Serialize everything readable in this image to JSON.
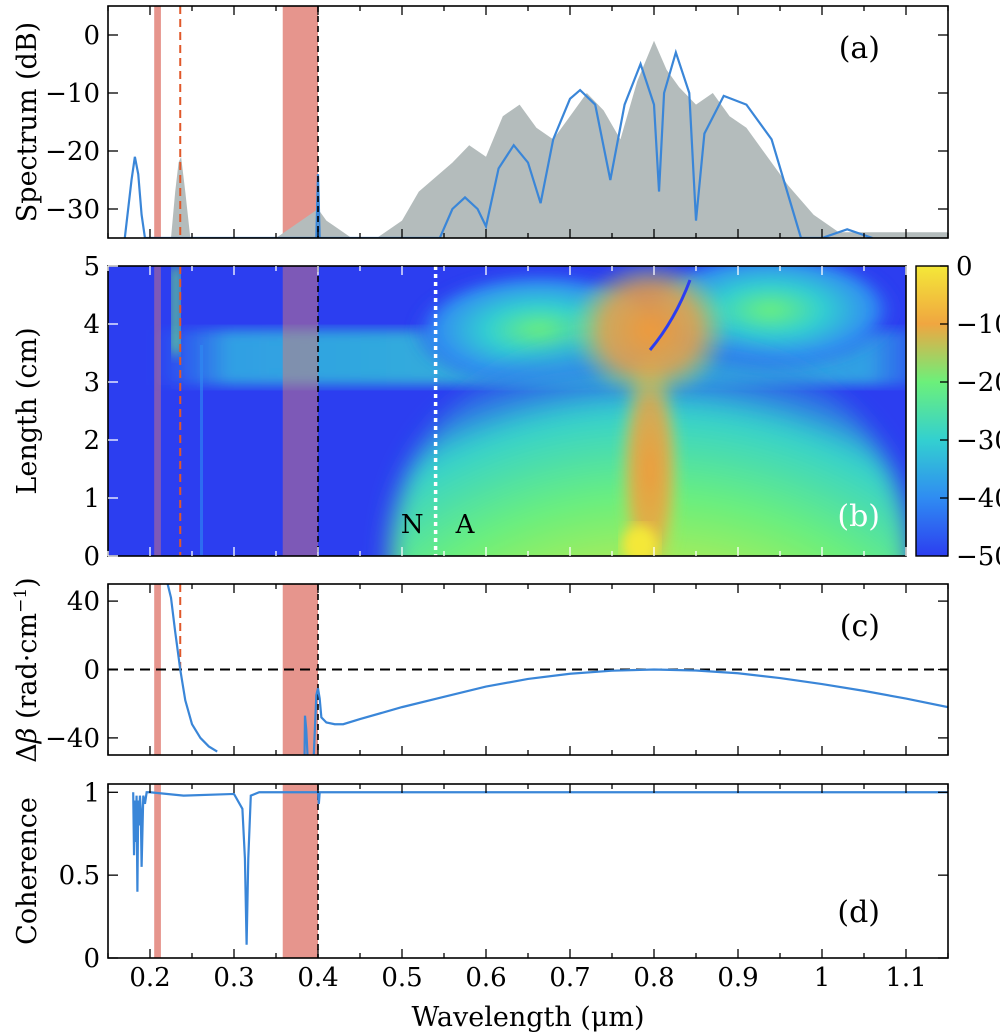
{
  "colors": {
    "curve": "#3a86d8",
    "spectrum_fill": "#b4bcbc",
    "band": "#e07a70",
    "dashed_vertical": "#e0582a",
    "zero_line": "#000000",
    "na_line": "#ffffff",
    "colormap": [
      "#2c3ef0",
      "#2f8cf2",
      "#33d0d0",
      "#6cf07a",
      "#c8e848",
      "#f0a640",
      "#f09a3a",
      "#f4e838"
    ]
  },
  "shared_x": {
    "label": "Wavelength (μm)",
    "range": [
      0.15,
      1.15
    ],
    "ticks": [
      0.2,
      0.3,
      0.4,
      0.5,
      0.6,
      0.7,
      0.8,
      0.9,
      1,
      1.1
    ],
    "tick_labels": [
      "0.2",
      "0.3",
      "0.4",
      "0.5",
      "0.6",
      "0.7",
      "0.8",
      "0.9",
      "1",
      "1.1"
    ]
  },
  "shaded_bands": [
    [
      0.205,
      0.213
    ],
    [
      0.358,
      0.4
    ]
  ],
  "dashed_wavelength": 0.236,
  "vertical_solid_wavelength": 0.4,
  "chart_data": [
    {
      "panel": "a",
      "type": "line",
      "label": "(a)",
      "ylabel": "Spectrum (dB)",
      "ylim": [
        -35,
        5
      ],
      "yticks": [
        0,
        -10,
        -20,
        -30
      ],
      "ytick_labels": [
        "0",
        "−10",
        "−20",
        "−30"
      ],
      "series": [
        {
          "kind": "simulated",
          "x": [
            0.225,
            0.23,
            0.234,
            0.237,
            0.242,
            0.248,
            0.31,
            0.33,
            0.35,
            0.38,
            0.4,
            0.41,
            0.42,
            0.44,
            0.47,
            0.5,
            0.52,
            0.56,
            0.58,
            0.6,
            0.62,
            0.64,
            0.66,
            0.68,
            0.7,
            0.72,
            0.74,
            0.76,
            0.78,
            0.8,
            0.815,
            0.83,
            0.85,
            0.87,
            0.89,
            0.91,
            0.93,
            0.96,
            0.99,
            1.02,
            1.15
          ],
          "y": [
            -35,
            -27,
            -22,
            -21,
            -27,
            -35,
            -35,
            -35,
            -35,
            -32,
            -30,
            -32,
            -33,
            -35,
            -35,
            -32,
            -27,
            -22,
            -19,
            -21,
            -14,
            -12,
            -16,
            -18,
            -14,
            -10,
            -13,
            -18,
            -8,
            -1,
            -6,
            -9,
            -12,
            -10,
            -14,
            -16,
            -20,
            -26,
            -31,
            -34,
            -34
          ]
        },
        {
          "kind": "model",
          "x": [
            0.17,
            0.178,
            0.182,
            0.186,
            0.19,
            0.194,
            0.398,
            0.4,
            0.402,
            0.545,
            0.56,
            0.575,
            0.59,
            0.6,
            0.615,
            0.633,
            0.65,
            0.665,
            0.68,
            0.7,
            0.712,
            0.73,
            0.748,
            0.765,
            0.784,
            0.8,
            0.806,
            0.812,
            0.826,
            0.842,
            0.85,
            0.86,
            0.883,
            0.91,
            0.94,
            0.975,
            1.0,
            1.03,
            1.06
          ],
          "y": [
            -35,
            -25,
            -21,
            -24,
            -31,
            -35,
            -35,
            -24,
            -35,
            -35,
            -30,
            -28,
            -30,
            -33,
            -23,
            -19,
            -22,
            -29,
            -18,
            -11,
            -9.5,
            -12,
            -25,
            -12,
            -5,
            -12,
            -27,
            -10,
            -3,
            -10,
            -32,
            -17,
            -10.5,
            -12,
            -18,
            -35,
            -35,
            -33.5,
            -35
          ]
        }
      ]
    },
    {
      "panel": "b",
      "type": "heatmap",
      "label": "(b)",
      "ylabel": "Length (cm)",
      "ylim": [
        0,
        5
      ],
      "yticks": [
        0,
        1,
        2,
        3,
        4,
        5
      ],
      "ytick_labels": [
        "0",
        "1",
        "2",
        "3",
        "4",
        "5"
      ],
      "colorbar": {
        "range": [
          -50,
          0
        ],
        "ticks": [
          0,
          -10,
          -20,
          -30,
          -40,
          -50
        ],
        "tick_labels": [
          "0",
          "−10",
          "−20",
          "−30",
          "−40",
          "−50"
        ]
      },
      "na_boundary": {
        "x": 0.54,
        "left_label": "N",
        "right_label": "A"
      }
    },
    {
      "panel": "c",
      "type": "line",
      "label": "(c)",
      "ylabel_prefix": "Δ",
      "ylabel_symbol": "β",
      "ylabel_unit": " (rad·cm",
      "ylabel_sup": "−1",
      "ylabel_close": ")",
      "ylim": [
        -50,
        50
      ],
      "yticks": [
        40,
        0,
        -40
      ],
      "ytick_labels": [
        "40",
        "0",
        "−40"
      ],
      "series": [
        {
          "kind": "left-branch",
          "x": [
            0.221,
            0.225,
            0.23,
            0.236,
            0.242,
            0.25,
            0.26,
            0.27,
            0.28
          ],
          "y": [
            50,
            42,
            22,
            0,
            -18,
            -32,
            -40,
            -45,
            -48
          ]
        },
        {
          "kind": "resonance-1",
          "x": [
            0.384,
            0.3845,
            0.386,
            0.3875
          ],
          "y": [
            -50,
            -27,
            -35,
            -50
          ]
        },
        {
          "kind": "main-branch",
          "x": [
            0.395,
            0.398,
            0.4,
            0.402,
            0.404,
            0.41,
            0.42,
            0.43,
            0.45,
            0.5,
            0.55,
            0.6,
            0.65,
            0.7,
            0.75,
            0.8,
            0.85,
            0.9,
            0.95,
            1.0,
            1.05,
            1.1,
            1.15
          ],
          "y": [
            -50,
            -15,
            -11,
            -17,
            -28,
            -31,
            -32,
            -32,
            -29,
            -22,
            -16,
            -10,
            -5.5,
            -2.5,
            -0.7,
            0,
            -0.6,
            -2.2,
            -5,
            -8.5,
            -12.5,
            -17,
            -22
          ]
        }
      ]
    },
    {
      "panel": "d",
      "type": "line",
      "label": "(d)",
      "ylabel": "Coherence",
      "ylim": [
        0,
        1.05
      ],
      "yticks": [
        0,
        0.5,
        1
      ],
      "ytick_labels": [
        "0",
        "0.5",
        "1"
      ],
      "series": [
        {
          "kind": "coherence",
          "x": [
            0.18,
            0.181,
            0.182,
            0.183,
            0.184,
            0.185,
            0.186,
            0.187,
            0.188,
            0.189,
            0.19,
            0.192,
            0.194,
            0.196,
            0.2,
            0.24,
            0.3,
            0.31,
            0.313,
            0.315,
            0.317,
            0.32,
            0.33,
            0.358,
            0.4,
            0.401,
            0.402,
            0.5,
            1.15
          ],
          "y": [
            1.0,
            0.62,
            0.95,
            0.7,
            0.98,
            0.4,
            0.95,
            0.8,
            0.98,
            0.9,
            0.55,
            0.98,
            0.93,
            1.0,
            1.0,
            0.98,
            0.99,
            0.9,
            0.6,
            0.08,
            0.6,
            0.98,
            1.0,
            1.0,
            1.0,
            0.93,
            1.0,
            1.0,
            1.0
          ]
        }
      ]
    }
  ]
}
